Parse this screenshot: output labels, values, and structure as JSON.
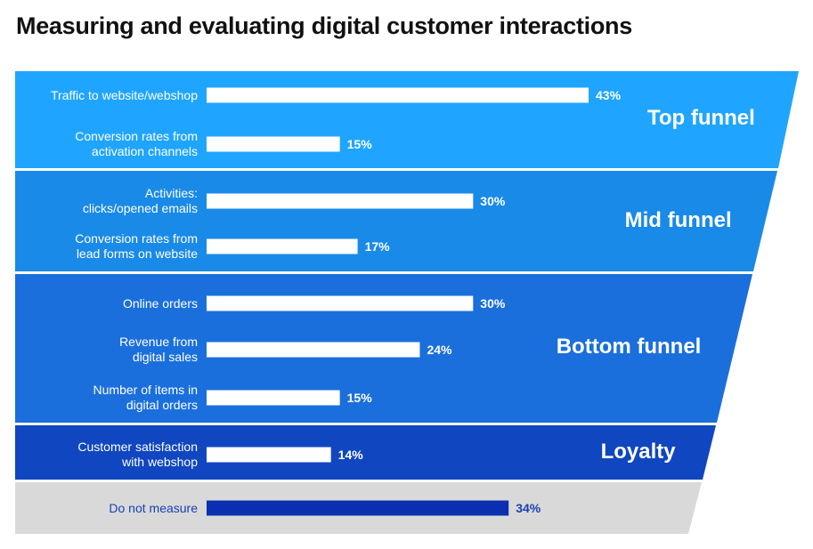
{
  "title": "Measuring and evaluating digital customer interactions",
  "colors": {
    "top": "#1fa5ff",
    "mid": "#1a8ae8",
    "bottom": "#1a6fdc",
    "loyalty": "#1046c0",
    "none": "#d9d9d9",
    "bar": "#ffffff",
    "bar_none": "#0a2fb0",
    "text_none": "#1a3fb5"
  },
  "chart_data": {
    "type": "bar",
    "orientation": "horizontal",
    "title": "Measuring and evaluating digital customer interactions",
    "xlim": [
      0,
      43
    ],
    "stages": [
      {
        "name": "Top funnel",
        "color_key": "top",
        "items": [
          {
            "label": "Traffic to website/webshop",
            "value": 43,
            "value_label": "43%"
          },
          {
            "label": "Conversion rates from\nactivation channels",
            "value": 15,
            "value_label": "15%"
          }
        ]
      },
      {
        "name": "Mid funnel",
        "color_key": "mid",
        "items": [
          {
            "label": "Activities:\nclicks/opened emails",
            "value": 30,
            "value_label": "30%"
          },
          {
            "label": "Conversion rates from\nlead forms on website",
            "value": 17,
            "value_label": "17%"
          }
        ]
      },
      {
        "name": "Bottom funnel",
        "color_key": "bottom",
        "items": [
          {
            "label": "Online orders",
            "value": 30,
            "value_label": "30%"
          },
          {
            "label": "Revenue from\ndigital sales",
            "value": 24,
            "value_label": "24%"
          },
          {
            "label": "Number of items in\ndigital orders",
            "value": 15,
            "value_label": "15%"
          }
        ]
      },
      {
        "name": "Loyalty",
        "color_key": "loyalty",
        "items": [
          {
            "label": "Customer satisfaction\nwith webshop",
            "value": 14,
            "value_label": "14%"
          }
        ]
      },
      {
        "name": "",
        "color_key": "none",
        "items": [
          {
            "label": "Do not measure",
            "value": 34,
            "value_label": "34%"
          }
        ]
      }
    ]
  }
}
